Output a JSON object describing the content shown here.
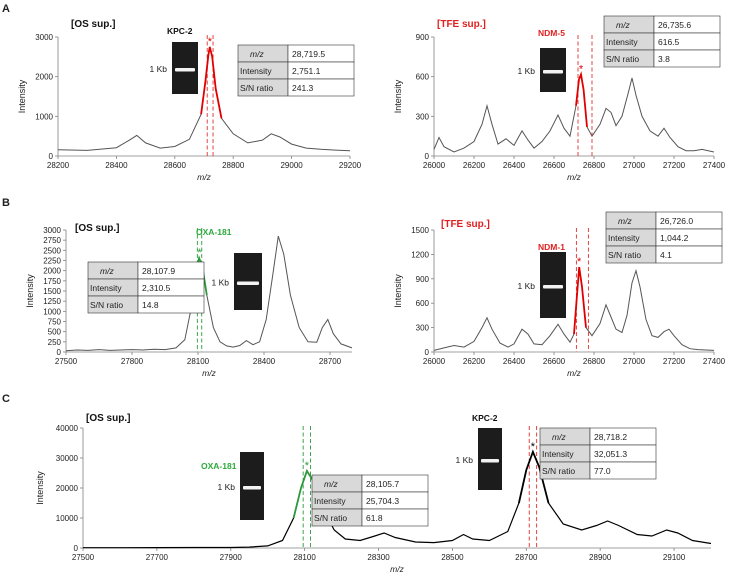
{
  "colors": {
    "axis": "#808080",
    "trace_gray": "#555555",
    "trace_black": "#000000",
    "peak_red": "#e00000",
    "peak_green": "#2a9a3a",
    "dash_red": "#e03030",
    "dash_green": "#2a9a3a",
    "tfe_label": "#e02020",
    "oxa_label": "#2aaa3a",
    "table_shade": "#d9d9d9",
    "gel_bg": "#1c1c1c",
    "gel_band": "#f2f2f2"
  },
  "chart_data": [
    {
      "id": "A-left",
      "type": "line",
      "panel_letter": "A",
      "sample_label": "[OS sup.]",
      "gene_label": "KPC-2",
      "gene_color": "black",
      "gel_label": "1 Kb",
      "xlabel": "m/z",
      "ylabel": "Intensity",
      "xlim": [
        28200,
        29200
      ],
      "ylim": [
        0,
        3000
      ],
      "xticks": [
        28200,
        28400,
        28600,
        28800,
        29000,
        29200
      ],
      "yticks": [
        0,
        1000,
        2000,
        3000
      ],
      "peak_mz": 28720,
      "dashed_lines_mz": [
        28711,
        28731
      ],
      "peak_color": "red",
      "table": [
        [
          "m/z",
          "28,719.5"
        ],
        [
          "Intensity",
          "2,751.1"
        ],
        [
          "S/N ratio",
          "241.3"
        ]
      ],
      "trace": [
        [
          28200,
          160
        ],
        [
          28300,
          140
        ],
        [
          28400,
          210
        ],
        [
          28440,
          380
        ],
        [
          28470,
          520
        ],
        [
          28500,
          330
        ],
        [
          28550,
          200
        ],
        [
          28600,
          240
        ],
        [
          28650,
          420
        ],
        [
          28690,
          1050
        ],
        [
          28705,
          1900
        ],
        [
          28715,
          2550
        ],
        [
          28720,
          2751
        ],
        [
          28728,
          2500
        ],
        [
          28740,
          1700
        ],
        [
          28760,
          950
        ],
        [
          28800,
          560
        ],
        [
          28850,
          330
        ],
        [
          28900,
          400
        ],
        [
          28930,
          560
        ],
        [
          28960,
          480
        ],
        [
          29000,
          300
        ],
        [
          29050,
          200
        ],
        [
          29100,
          170
        ],
        [
          29150,
          150
        ],
        [
          29200,
          130
        ]
      ]
    },
    {
      "id": "A-right",
      "type": "line",
      "panel_letter": "",
      "sample_label": "[TFE sup.]",
      "gene_label": "NDM-5",
      "gene_color": "red",
      "gel_label": "1 Kb",
      "xlabel": "m/z",
      "ylabel": "Intensity",
      "xlim": [
        26000,
        27400
      ],
      "ylim": [
        0,
        900
      ],
      "xticks": [
        26000,
        26200,
        26400,
        26600,
        26800,
        27000,
        27200,
        27400
      ],
      "yticks": [
        0,
        300,
        600,
        900
      ],
      "peak_mz": 26735,
      "dashed_lines_mz": [
        26720,
        26790
      ],
      "peak_color": "red",
      "table": [
        [
          "m/z",
          "26,735.6"
        ],
        [
          "Intensity",
          "616.5"
        ],
        [
          "S/N ratio",
          "3.8"
        ]
      ],
      "trace": [
        [
          26000,
          50
        ],
        [
          26025,
          140
        ],
        [
          26050,
          70
        ],
        [
          26100,
          30
        ],
        [
          26150,
          60
        ],
        [
          26200,
          110
        ],
        [
          26240,
          240
        ],
        [
          26265,
          380
        ],
        [
          26290,
          240
        ],
        [
          26320,
          90
        ],
        [
          26360,
          130
        ],
        [
          26400,
          80
        ],
        [
          26440,
          190
        ],
        [
          26470,
          120
        ],
        [
          26500,
          60
        ],
        [
          26540,
          110
        ],
        [
          26580,
          190
        ],
        [
          26620,
          310
        ],
        [
          26650,
          210
        ],
        [
          26680,
          150
        ],
        [
          26710,
          380
        ],
        [
          26725,
          580
        ],
        [
          26735,
          617
        ],
        [
          26748,
          500
        ],
        [
          26765,
          220
        ],
        [
          26790,
          150
        ],
        [
          26830,
          240
        ],
        [
          26860,
          360
        ],
        [
          26885,
          330
        ],
        [
          26910,
          230
        ],
        [
          26940,
          300
        ],
        [
          26970,
          470
        ],
        [
          26990,
          590
        ],
        [
          27010,
          460
        ],
        [
          27040,
          300
        ],
        [
          27080,
          190
        ],
        [
          27120,
          150
        ],
        [
          27150,
          210
        ],
        [
          27180,
          140
        ],
        [
          27220,
          70
        ],
        [
          27260,
          40
        ],
        [
          27300,
          40
        ],
        [
          27340,
          50
        ],
        [
          27400,
          30
        ]
      ]
    },
    {
      "id": "B-left",
      "type": "line",
      "panel_letter": "B",
      "sample_label": "[OS sup.]",
      "gene_label": "OXA-181",
      "gene_color": "green",
      "gel_label": "1 Kb",
      "xlabel": "m/z",
      "ylabel": "Intensity",
      "xlim": [
        27500,
        28800
      ],
      "ylim": [
        0,
        3000
      ],
      "xticks": [
        27500,
        27800,
        28100,
        28400,
        28700
      ],
      "yticks": [
        0,
        250,
        500,
        750,
        1000,
        1250,
        1500,
        1750,
        2000,
        2250,
        2500,
        2750,
        3000
      ],
      "peak_mz": 28107,
      "dashed_lines_mz": [
        28097,
        28117
      ],
      "peak_color": "green",
      "table": [
        [
          "m/z",
          "28,107.9"
        ],
        [
          "Intensity",
          "2,310.5"
        ],
        [
          "S/N ratio",
          "14.8"
        ]
      ],
      "trace": [
        [
          27500,
          30
        ],
        [
          27550,
          50
        ],
        [
          27600,
          40
        ],
        [
          27650,
          60
        ],
        [
          27700,
          40
        ],
        [
          27750,
          50
        ],
        [
          27800,
          60
        ],
        [
          27850,
          50
        ],
        [
          27900,
          70
        ],
        [
          27950,
          60
        ],
        [
          28000,
          100
        ],
        [
          28040,
          300
        ],
        [
          28070,
          1100
        ],
        [
          28090,
          2000
        ],
        [
          28105,
          2310
        ],
        [
          28120,
          2100
        ],
        [
          28140,
          1400
        ],
        [
          28170,
          600
        ],
        [
          28200,
          250
        ],
        [
          28230,
          150
        ],
        [
          28260,
          120
        ],
        [
          28290,
          160
        ],
        [
          28320,
          280
        ],
        [
          28350,
          180
        ],
        [
          28380,
          250
        ],
        [
          28410,
          800
        ],
        [
          28440,
          1900
        ],
        [
          28465,
          2850
        ],
        [
          28490,
          2400
        ],
        [
          28520,
          1400
        ],
        [
          28560,
          600
        ],
        [
          28600,
          250
        ],
        [
          28640,
          240
        ],
        [
          28665,
          600
        ],
        [
          28690,
          800
        ],
        [
          28715,
          450
        ],
        [
          28750,
          200
        ],
        [
          28800,
          100
        ]
      ]
    },
    {
      "id": "B-right",
      "type": "line",
      "panel_letter": "",
      "sample_label": "[TFE sup.]",
      "gene_label": "NDM-1",
      "gene_color": "red",
      "gel_label": "1 Kb",
      "xlabel": "m/z",
      "ylabel": "Intensity",
      "xlim": [
        26000,
        27400
      ],
      "ylim": [
        0,
        1500
      ],
      "xticks": [
        26000,
        26200,
        26400,
        26600,
        26800,
        27000,
        27200,
        27400
      ],
      "yticks": [
        0,
        300,
        600,
        900,
        1200,
        1500
      ],
      "peak_mz": 26726,
      "dashed_lines_mz": [
        26712,
        26772
      ],
      "peak_color": "red",
      "table": [
        [
          "m/z",
          "26,726.0"
        ],
        [
          "Intensity",
          "1,044.2"
        ],
        [
          "S/N ratio",
          "4.1"
        ]
      ],
      "trace": [
        [
          26000,
          20
        ],
        [
          26050,
          50
        ],
        [
          26100,
          80
        ],
        [
          26150,
          60
        ],
        [
          26200,
          130
        ],
        [
          26240,
          300
        ],
        [
          26265,
          420
        ],
        [
          26290,
          280
        ],
        [
          26330,
          110
        ],
        [
          26370,
          60
        ],
        [
          26400,
          100
        ],
        [
          26440,
          280
        ],
        [
          26470,
          220
        ],
        [
          26500,
          100
        ],
        [
          26540,
          90
        ],
        [
          26580,
          200
        ],
        [
          26620,
          340
        ],
        [
          26650,
          220
        ],
        [
          26680,
          120
        ],
        [
          26700,
          220
        ],
        [
          26715,
          700
        ],
        [
          26726,
          1044
        ],
        [
          26740,
          800
        ],
        [
          26760,
          300
        ],
        [
          26790,
          200
        ],
        [
          26830,
          350
        ],
        [
          26860,
          580
        ],
        [
          26885,
          430
        ],
        [
          26910,
          280
        ],
        [
          26940,
          240
        ],
        [
          26965,
          450
        ],
        [
          26990,
          850
        ],
        [
          27010,
          1000
        ],
        [
          27030,
          800
        ],
        [
          27060,
          400
        ],
        [
          27090,
          200
        ],
        [
          27120,
          180
        ],
        [
          27150,
          250
        ],
        [
          27175,
          280
        ],
        [
          27200,
          200
        ],
        [
          27240,
          90
        ],
        [
          27280,
          40
        ],
        [
          27320,
          30
        ],
        [
          27360,
          25
        ],
        [
          27400,
          20
        ]
      ]
    },
    {
      "id": "C",
      "type": "line",
      "panel_letter": "C",
      "sample_label": "[OS sup.]",
      "xlabel": "m/z",
      "ylabel": "Intensity",
      "xlim": [
        27500,
        29200
      ],
      "ylim": [
        0,
        40000
      ],
      "xticks": [
        27500,
        27700,
        27900,
        28100,
        28300,
        28500,
        28700,
        28900,
        29100
      ],
      "yticks": [
        0,
        10000,
        20000,
        30000,
        40000
      ],
      "peaks": [
        {
          "gene_label": "OXA-181",
          "gene_color": "green",
          "gel_label": "1 Kb",
          "peak_mz": 28106,
          "dashed_lines_mz": [
            28096,
            28116
          ],
          "peak_color": "green",
          "table": [
            [
              "m/z",
              "28,105.7"
            ],
            [
              "Intensity",
              "25,704.3"
            ],
            [
              "S/N ratio",
              "61.8"
            ]
          ]
        },
        {
          "gene_label": "KPC-2",
          "gene_color": "black",
          "gel_label": "1 Kb",
          "peak_mz": 28718,
          "dashed_lines_mz": [
            28708,
            28728
          ],
          "peak_color": "black",
          "table": [
            [
              "m/z",
              "28,718.2"
            ],
            [
              "Intensity",
              "32,051.3"
            ],
            [
              "S/N ratio",
              "77.0"
            ]
          ]
        }
      ],
      "trace": [
        [
          27500,
          100
        ],
        [
          27600,
          100
        ],
        [
          27700,
          120
        ],
        [
          27800,
          150
        ],
        [
          27900,
          180
        ],
        [
          27950,
          300
        ],
        [
          28000,
          700
        ],
        [
          28040,
          2500
        ],
        [
          28070,
          10000
        ],
        [
          28090,
          20000
        ],
        [
          28106,
          25704
        ],
        [
          28125,
          22000
        ],
        [
          28150,
          13000
        ],
        [
          28180,
          6000
        ],
        [
          28210,
          3000
        ],
        [
          28250,
          2500
        ],
        [
          28290,
          4000
        ],
        [
          28315,
          5000
        ],
        [
          28345,
          3500
        ],
        [
          28400,
          2000
        ],
        [
          28450,
          1800
        ],
        [
          28500,
          2500
        ],
        [
          28530,
          4500
        ],
        [
          28555,
          3000
        ],
        [
          28600,
          2500
        ],
        [
          28650,
          5500
        ],
        [
          28680,
          15000
        ],
        [
          28700,
          26000
        ],
        [
          28718,
          32051
        ],
        [
          28735,
          27000
        ],
        [
          28760,
          15000
        ],
        [
          28800,
          8000
        ],
        [
          28850,
          6000
        ],
        [
          28890,
          7500
        ],
        [
          28920,
          9000
        ],
        [
          28950,
          7500
        ],
        [
          29000,
          4500
        ],
        [
          29040,
          4000
        ],
        [
          29080,
          6000
        ],
        [
          29110,
          5000
        ],
        [
          29150,
          2500
        ],
        [
          29200,
          1500
        ]
      ]
    }
  ]
}
